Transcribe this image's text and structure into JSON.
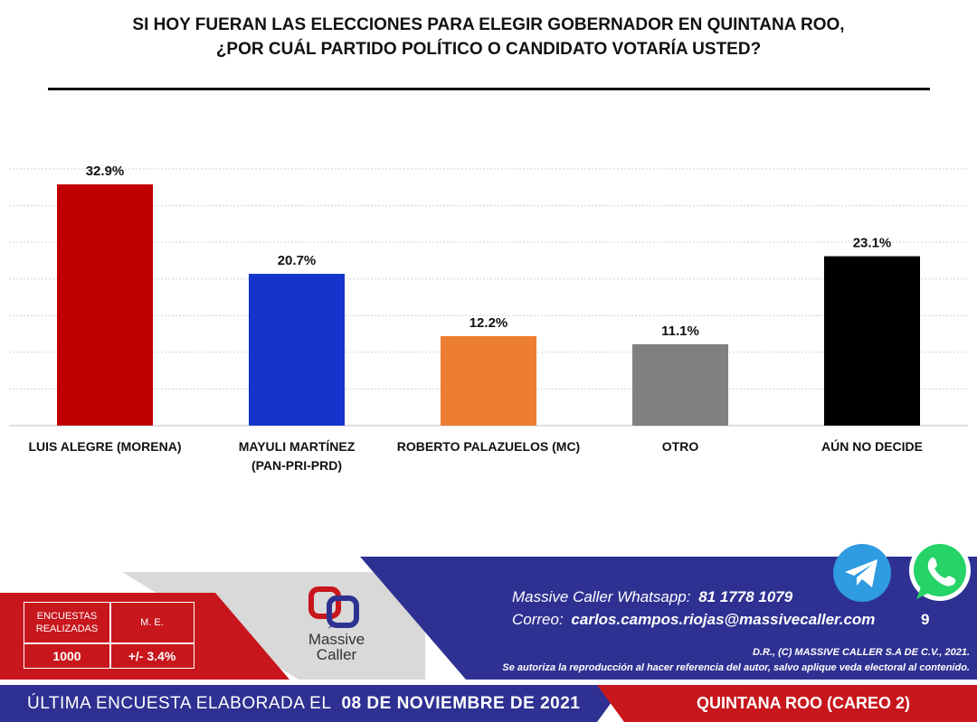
{
  "title": {
    "line1": "SI HOY FUERAN LAS ELECCIONES PARA ELEGIR GOBERNADOR EN QUINTANA ROO,",
    "line2": "¿POR CUÁL PARTIDO POLÍTICO O CANDIDATO VOTARÍA USTED?"
  },
  "chart_data": {
    "type": "bar",
    "categories": [
      "LUIS ALEGRE (MORENA)",
      "MAYULI MARTÍNEZ (PAN-PRI-PRD)",
      "ROBERTO PALAZUELOS (MC)",
      "OTRO",
      "AÚN NO DECIDE"
    ],
    "category_lines": [
      [
        "LUIS ALEGRE (MORENA)"
      ],
      [
        "MAYULI MARTÍNEZ",
        "(PAN-PRI-PRD)"
      ],
      [
        "ROBERTO PALAZUELOS (MC)"
      ],
      [
        "OTRO"
      ],
      [
        "AÚN NO DECIDE"
      ]
    ],
    "values": [
      32.9,
      20.7,
      12.2,
      11.1,
      23.1
    ],
    "data_labels": [
      "32.9%",
      "20.7%",
      "12.2%",
      "11.1%",
      "23.1%"
    ],
    "colors": [
      "#c00000",
      "#1434cb",
      "#ed7d31",
      "#808080",
      "#000000"
    ],
    "ylim": [
      0,
      35
    ],
    "grid": true,
    "legend": "none"
  },
  "footer": {
    "whatsapp_label": "Massive Caller Whatsapp:",
    "whatsapp_number": "81 1778 1079",
    "email_label": "Correo:",
    "email": "carlos.campos.riojas@massivecaller.com",
    "page_number": "9",
    "copyright": "D.R., (C) MASSIVE CALLER S.A DE C.V., 2021.",
    "disclaimer": "Se autoriza la reproducción al hacer referencia del autor, salvo aplique veda electoral al contenido.",
    "table": {
      "h1": "ENCUESTAS REALIZADAS",
      "h2": "M. E.",
      "v1": "1000",
      "v2": "+/- 3.4%"
    },
    "logo_line1": "Massive",
    "logo_line2": "Caller",
    "last_survey_label": "ÚLTIMA ENCUESTA ELABORADA EL",
    "last_survey_date": "08 DE NOVIEMBRE DE 2021",
    "region": "QUINTANA ROO (CAREO 2)"
  },
  "icons": {
    "telegram": "telegram-icon",
    "whatsapp": "whatsapp-icon",
    "logo": "massive-caller-logo"
  }
}
